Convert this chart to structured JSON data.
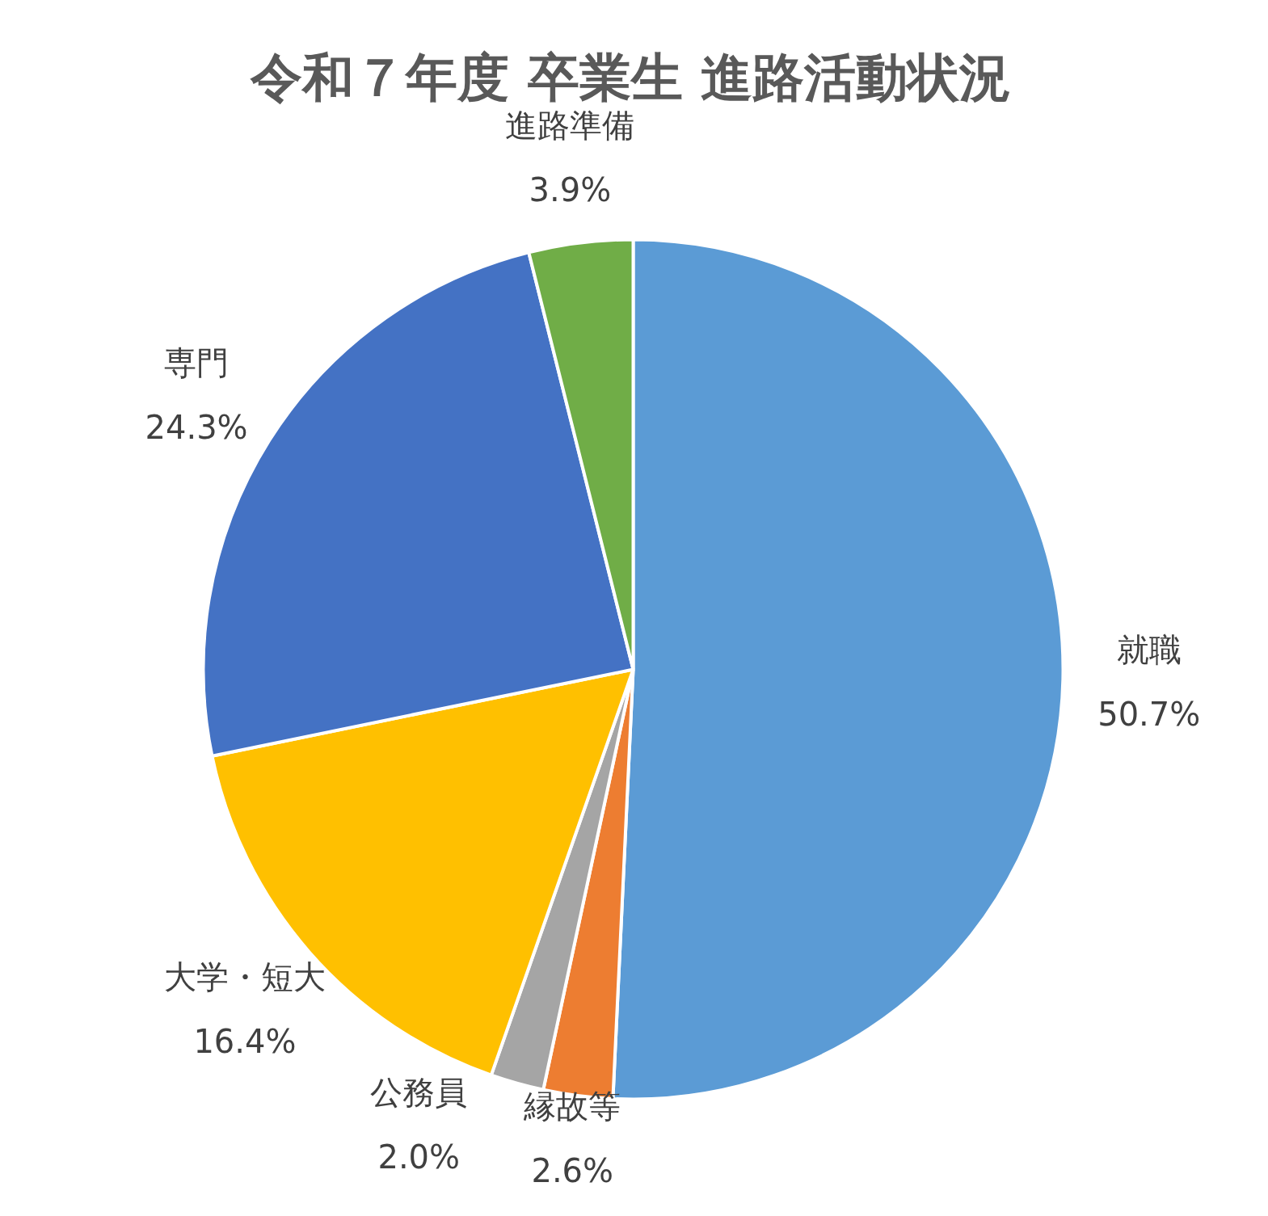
{
  "chart_data": {
    "type": "pie",
    "title": "令和７年度 卒業生 進路活動状況",
    "categories": [
      "就職",
      "縁故等",
      "公務員",
      "大学・短大",
      "専門",
      "進路準備"
    ],
    "values": [
      50.7,
      2.6,
      2.0,
      16.4,
      24.3,
      3.9
    ],
    "colors": [
      "#5b9bd5",
      "#ed7d31",
      "#a5a5a5",
      "#ffc000",
      "#4472c4",
      "#70ad47"
    ],
    "value_labels": [
      "50.7%",
      "2.6%",
      "2.0%",
      "16.4%",
      "24.3%",
      "3.9%"
    ],
    "legend": false
  }
}
